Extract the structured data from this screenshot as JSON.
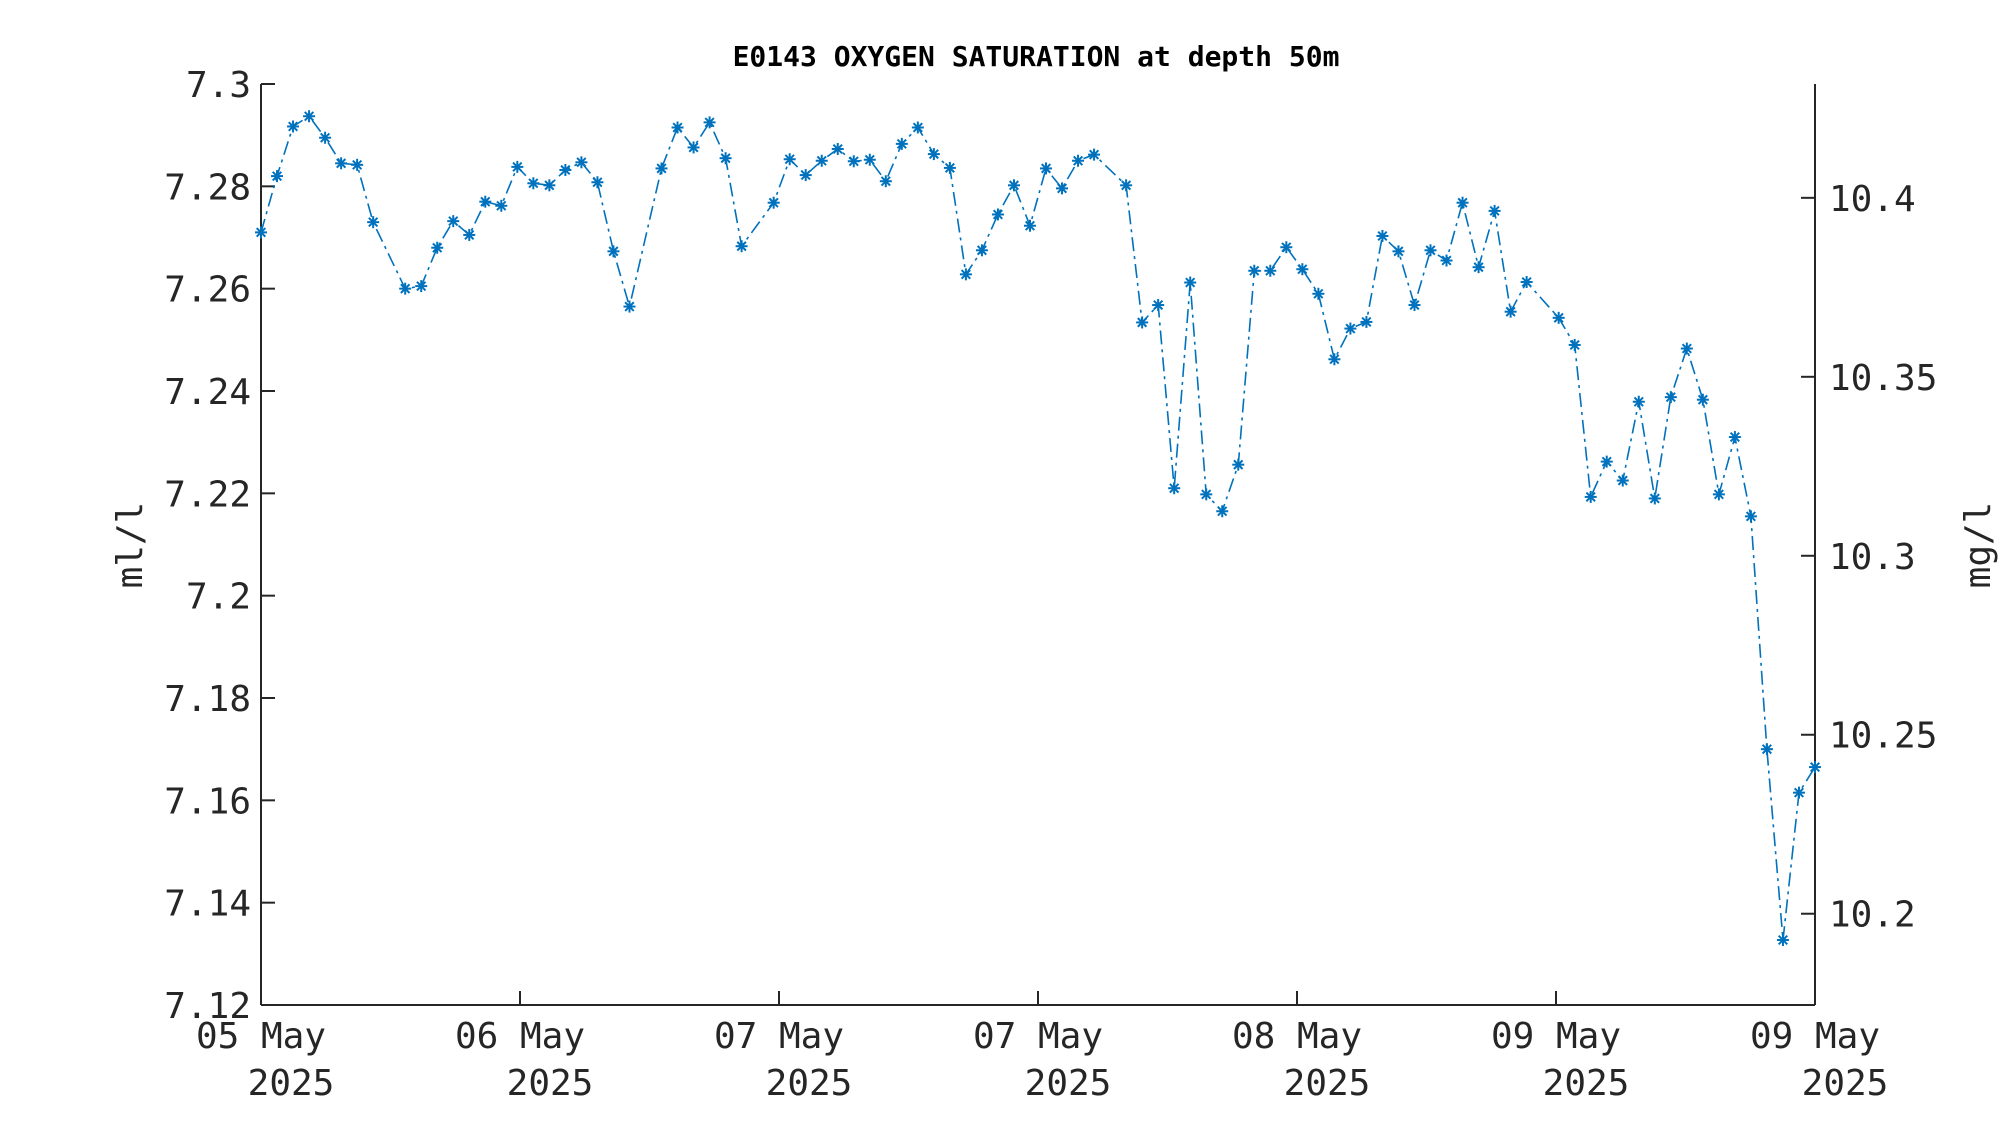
{
  "chart_data": {
    "type": "line",
    "title": "E0143 OXYGEN SATURATION at depth 50m",
    "ylabel": "ml/l",
    "y2label": "mg/l",
    "ylim": [
      7.12,
      7.3
    ],
    "y2lim": [
      10.1745,
      10.4318
    ],
    "grid": false,
    "yticks": [
      "7.3",
      "7.28",
      "7.26",
      "7.24",
      "7.22",
      "7.2",
      "7.18",
      "7.16",
      "7.14",
      "7.12"
    ],
    "y2ticks": [
      "10.4",
      "10.35",
      "10.3",
      "10.25",
      "10.2"
    ],
    "xticks": [
      {
        "day": "05 May",
        "year": "2025"
      },
      {
        "day": "06 May",
        "year": "2025"
      },
      {
        "day": "07 May",
        "year": "2025"
      },
      {
        "day": "07 May",
        "year": "2025"
      },
      {
        "day": "08 May",
        "year": "2025"
      },
      {
        "day": "09 May",
        "year": "2025"
      },
      {
        "day": "09 May",
        "year": "2025"
      }
    ],
    "series": [
      {
        "color": "#0072BD",
        "line_style": "dash-dot",
        "marker": "asterisk",
        "values": [
          7.271,
          7.282,
          7.2917,
          7.2937,
          7.2895,
          7.2845,
          7.2842,
          7.273,
          null,
          7.26,
          7.2605,
          7.268,
          7.2732,
          7.2705,
          7.277,
          7.2762,
          7.2838,
          7.2806,
          7.2802,
          7.2832,
          7.2847,
          7.2808,
          7.2673,
          7.2565,
          null,
          7.2835,
          7.2915,
          7.2876,
          7.2925,
          7.2855,
          7.2683,
          null,
          7.2768,
          7.2853,
          7.2822,
          7.285,
          7.2873,
          7.2849,
          7.2852,
          7.281,
          7.2883,
          7.2915,
          7.2863,
          7.2836,
          7.2628,
          7.2675,
          7.2745,
          7.2802,
          7.2723,
          7.2835,
          7.2796,
          7.285,
          7.2862,
          null,
          7.2802,
          7.2534,
          7.2568,
          7.221,
          7.2612,
          7.2198,
          7.2165,
          7.2256,
          7.2635,
          7.2635,
          7.2681,
          7.2638,
          7.259,
          7.2462,
          7.2522,
          7.2535,
          7.2703,
          7.2673,
          7.2568,
          7.2675,
          7.2655,
          7.2768,
          7.2642,
          7.2752,
          7.2555,
          7.2613,
          null,
          7.2543,
          7.249,
          7.2193,
          7.2262,
          7.2225,
          7.2379,
          7.219,
          7.2388,
          7.2483,
          7.2383,
          7.2198,
          7.231,
          7.2155,
          7.17,
          7.1327,
          7.1615,
          7.1665
        ]
      }
    ]
  }
}
